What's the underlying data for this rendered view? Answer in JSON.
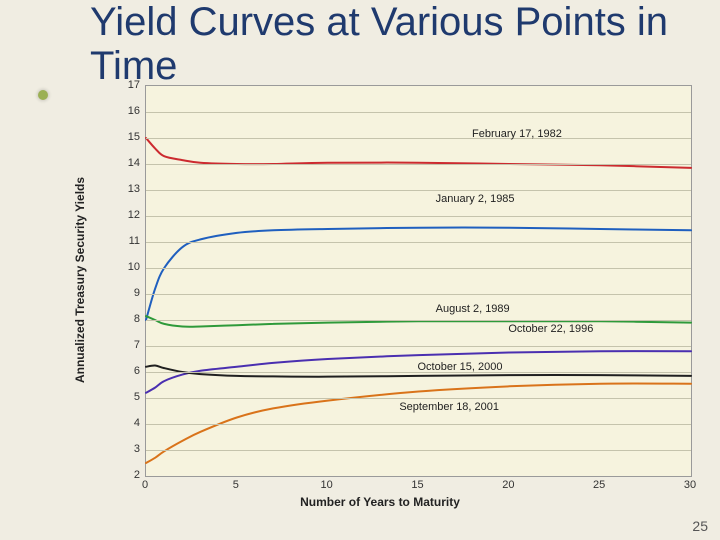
{
  "title": "Yield Curves at Various Points in Time",
  "slide_number": "25",
  "chart": {
    "type": "line",
    "background_color": "#f6f3de",
    "grid_color": "#c5c3ac",
    "x": {
      "label": "Number of Years to Maturity",
      "min": 0,
      "max": 30,
      "tick_step": 5
    },
    "y": {
      "label": "Annualized Treasury Security Yields",
      "min": 2,
      "max": 17,
      "tick_step": 1
    },
    "line_width": 2,
    "series": [
      {
        "label": "February 17, 1982",
        "color": "#cc2a2f",
        "label_xy": [
          18,
          15.1
        ],
        "points": [
          [
            0,
            15.0
          ],
          [
            0.5,
            14.6
          ],
          [
            1,
            14.3
          ],
          [
            2,
            14.15
          ],
          [
            3,
            14.05
          ],
          [
            5,
            14.0
          ],
          [
            7,
            14.0
          ],
          [
            10,
            14.05
          ],
          [
            15,
            14.05
          ],
          [
            20,
            14.0
          ],
          [
            25,
            13.95
          ],
          [
            30,
            13.85
          ]
        ]
      },
      {
        "label": "January 2, 1985",
        "color": "#1f5fbf",
        "label_xy": [
          16,
          12.6
        ],
        "points": [
          [
            0,
            8.0
          ],
          [
            0.5,
            9.2
          ],
          [
            1,
            10.0
          ],
          [
            2,
            10.8
          ],
          [
            3,
            11.1
          ],
          [
            5,
            11.35
          ],
          [
            7,
            11.45
          ],
          [
            10,
            11.5
          ],
          [
            15,
            11.55
          ],
          [
            20,
            11.55
          ],
          [
            25,
            11.5
          ],
          [
            30,
            11.45
          ]
        ]
      },
      {
        "label": "August 2, 1989",
        "color": "#2e9a3a",
        "label_xy": [
          16,
          8.4
        ],
        "points": [
          [
            0,
            8.15
          ],
          [
            0.5,
            8.0
          ],
          [
            1,
            7.85
          ],
          [
            2,
            7.75
          ],
          [
            3,
            7.75
          ],
          [
            5,
            7.8
          ],
          [
            7,
            7.85
          ],
          [
            10,
            7.9
          ],
          [
            15,
            7.95
          ],
          [
            20,
            7.95
          ],
          [
            25,
            7.95
          ],
          [
            30,
            7.9
          ]
        ]
      },
      {
        "label": "October 22, 1996",
        "color": "#4a2fb0",
        "label_xy": [
          20,
          7.6
        ],
        "points": [
          [
            0,
            5.2
          ],
          [
            0.5,
            5.4
          ],
          [
            1,
            5.65
          ],
          [
            2,
            5.9
          ],
          [
            3,
            6.05
          ],
          [
            5,
            6.2
          ],
          [
            7,
            6.35
          ],
          [
            10,
            6.5
          ],
          [
            15,
            6.65
          ],
          [
            20,
            6.75
          ],
          [
            25,
            6.8
          ],
          [
            30,
            6.8
          ]
        ]
      },
      {
        "label": "October 15, 2000",
        "color": "#202020",
        "label_xy": [
          15,
          6.15
        ],
        "points": [
          [
            0,
            6.2
          ],
          [
            0.5,
            6.25
          ],
          [
            1,
            6.15
          ],
          [
            2,
            6.0
          ],
          [
            3,
            5.92
          ],
          [
            5,
            5.85
          ],
          [
            7,
            5.83
          ],
          [
            10,
            5.82
          ],
          [
            15,
            5.85
          ],
          [
            20,
            5.88
          ],
          [
            25,
            5.88
          ],
          [
            30,
            5.85
          ]
        ]
      },
      {
        "label": "September 18, 2001",
        "color": "#d9731a",
        "label_xy": [
          14,
          4.6
        ],
        "points": [
          [
            0,
            2.5
          ],
          [
            0.5,
            2.7
          ],
          [
            1,
            2.95
          ],
          [
            2,
            3.35
          ],
          [
            3,
            3.7
          ],
          [
            5,
            4.25
          ],
          [
            7,
            4.6
          ],
          [
            10,
            4.9
          ],
          [
            15,
            5.25
          ],
          [
            20,
            5.45
          ],
          [
            25,
            5.55
          ],
          [
            30,
            5.55
          ]
        ]
      }
    ]
  }
}
